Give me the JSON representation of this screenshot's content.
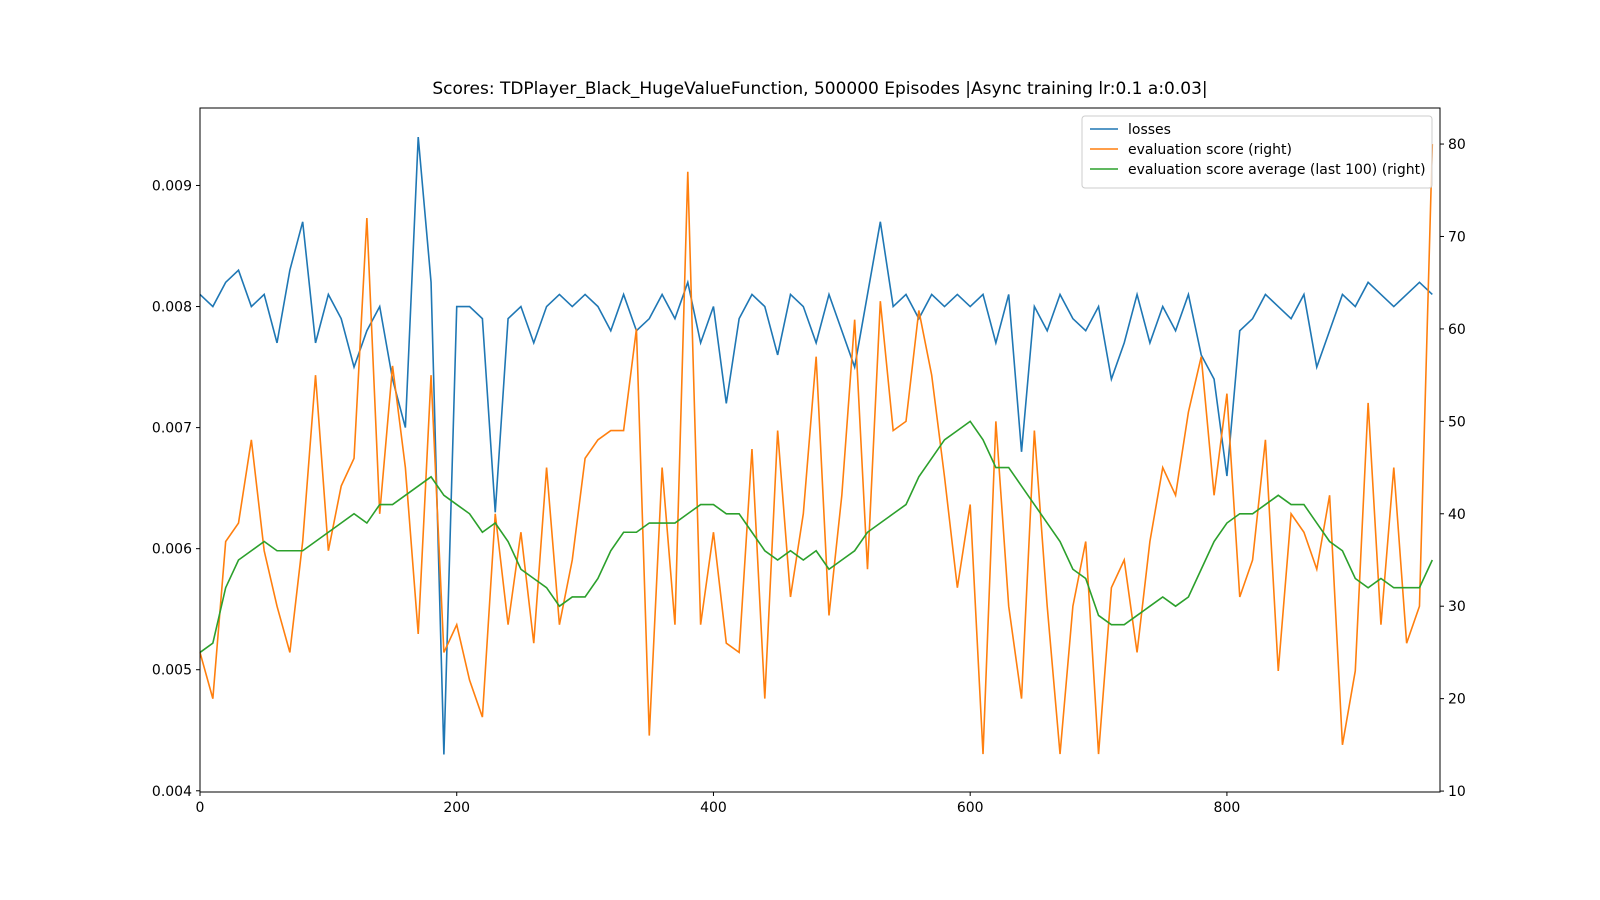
{
  "chart_data": {
    "type": "line",
    "title": "Scores: TDPlayer_Black_HugeValueFunction, 500000 Episodes |Async training lr:0.1 a:0.03|",
    "x": [
      0,
      10,
      20,
      30,
      40,
      50,
      60,
      70,
      80,
      90,
      100,
      110,
      120,
      130,
      140,
      150,
      160,
      170,
      180,
      190,
      200,
      210,
      220,
      230,
      240,
      250,
      260,
      270,
      280,
      290,
      300,
      310,
      320,
      330,
      340,
      350,
      360,
      370,
      380,
      390,
      400,
      410,
      420,
      430,
      440,
      450,
      460,
      470,
      480,
      490,
      500,
      510,
      520,
      530,
      540,
      550,
      560,
      570,
      580,
      590,
      600,
      610,
      620,
      630,
      640,
      650,
      660,
      670,
      680,
      690,
      700,
      710,
      720,
      730,
      740,
      750,
      760,
      770,
      780,
      790,
      800,
      810,
      820,
      830,
      840,
      850,
      860,
      870,
      880,
      890,
      900,
      910,
      920,
      930,
      940,
      950,
      960
    ],
    "series": [
      {
        "name": "losses",
        "color": "#1f77b4",
        "axis": "y",
        "values": [
          0.0081,
          0.008,
          0.0082,
          0.0083,
          0.008,
          0.0081,
          0.0077,
          0.0083,
          0.0087,
          0.0077,
          0.0081,
          0.0079,
          0.0075,
          0.0078,
          0.008,
          0.0074,
          0.007,
          0.0094,
          0.0082,
          0.0043,
          0.008,
          0.008,
          0.0079,
          0.0063,
          0.0079,
          0.008,
          0.0077,
          0.008,
          0.0081,
          0.008,
          0.0081,
          0.008,
          0.0078,
          0.0081,
          0.0078,
          0.0079,
          0.0081,
          0.0079,
          0.0082,
          0.0077,
          0.008,
          0.0072,
          0.0079,
          0.0081,
          0.008,
          0.0076,
          0.0081,
          0.008,
          0.0077,
          0.0081,
          0.0078,
          0.0075,
          0.0081,
          0.0087,
          0.008,
          0.0081,
          0.0079,
          0.0081,
          0.008,
          0.0081,
          0.008,
          0.0081,
          0.0077,
          0.0081,
          0.0068,
          0.008,
          0.0078,
          0.0081,
          0.0079,
          0.0078,
          0.008,
          0.0074,
          0.0077,
          0.0081,
          0.0077,
          0.008,
          0.0078,
          0.0081,
          0.0076,
          0.0074,
          0.0066,
          0.0078,
          0.0079,
          0.0081,
          0.008,
          0.0079,
          0.0081,
          0.0075,
          0.0078,
          0.0081,
          0.008,
          0.0082,
          0.0081,
          0.008,
          0.0081,
          0.0082,
          0.0081
        ]
      },
      {
        "name": "evaluation score (right)",
        "color": "#ff7f0e",
        "axis": "y2",
        "values": [
          25,
          20,
          37,
          39,
          48,
          36,
          30,
          25,
          37,
          55,
          36,
          43,
          46,
          72,
          40,
          56,
          45,
          27,
          55,
          25,
          28,
          22,
          18,
          40,
          28,
          38,
          26,
          45,
          28,
          35,
          46,
          48,
          49,
          49,
          60,
          16,
          45,
          28,
          77,
          28,
          38,
          26,
          25,
          47,
          20,
          49,
          31,
          40,
          57,
          29,
          42,
          61,
          34,
          63,
          49,
          50,
          62,
          55,
          44,
          32,
          41,
          14,
          50,
          30,
          20,
          49,
          30,
          14,
          30,
          37,
          14,
          32,
          35,
          25,
          37,
          45,
          42,
          51,
          57,
          42,
          53,
          31,
          35,
          48,
          23,
          40,
          38,
          34,
          42,
          15,
          23,
          52,
          28,
          45,
          26,
          30,
          80
        ]
      },
      {
        "name": "evaluation score average (last 100) (right)",
        "color": "#2ca02c",
        "axis": "y2",
        "values": [
          25,
          26,
          32,
          35,
          36,
          37,
          36,
          36,
          36,
          37,
          38,
          39,
          40,
          39,
          41,
          41,
          42,
          43,
          44,
          42,
          41,
          40,
          38,
          39,
          37,
          34,
          33,
          32,
          30,
          31,
          31,
          33,
          36,
          38,
          38,
          39,
          39,
          39,
          40,
          41,
          41,
          40,
          40,
          38,
          36,
          35,
          36,
          35,
          36,
          34,
          35,
          36,
          38,
          39,
          40,
          41,
          44,
          46,
          48,
          49,
          50,
          48,
          45,
          45,
          43,
          41,
          39,
          37,
          34,
          33,
          29,
          28,
          28,
          29,
          30,
          31,
          30,
          31,
          34,
          37,
          39,
          40,
          40,
          41,
          42,
          41,
          41,
          39,
          37,
          36,
          33,
          32,
          33,
          32,
          32,
          32,
          35
        ]
      }
    ],
    "xlim": [
      0,
      966
    ],
    "xticks": [
      0,
      200,
      400,
      600,
      800
    ],
    "ylim": [
      0.00399,
      0.00964
    ],
    "yticks": [
      0.004,
      0.005,
      0.006,
      0.007,
      0.008,
      0.009
    ],
    "y2lim": [
      9.9,
      83.9
    ],
    "y2ticks": [
      10,
      20,
      30,
      40,
      50,
      60,
      70,
      80
    ],
    "legend": "upper right"
  }
}
